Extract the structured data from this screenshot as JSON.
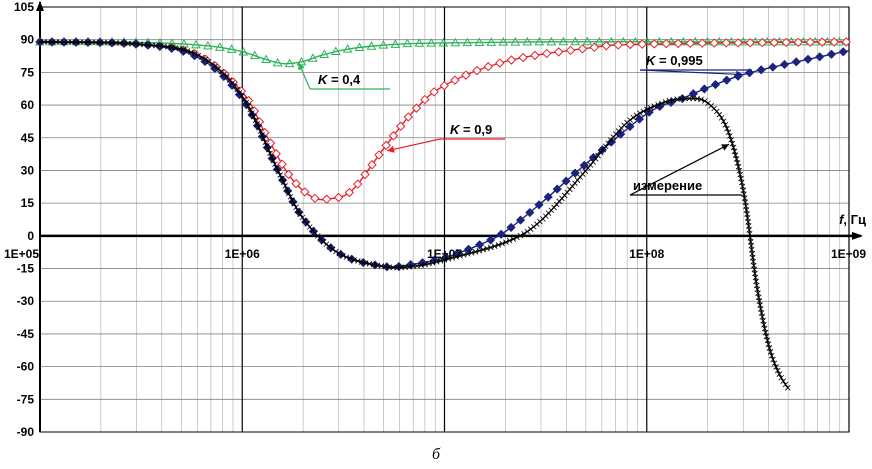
{
  "caption": "б",
  "chart_data": {
    "type": "line",
    "x_scale": "log",
    "xlim": [
      100000,
      1000000000
    ],
    "ylim": [
      -90,
      105
    ],
    "grid": true,
    "xlabel": "f, Гц",
    "x_ticks": [
      {
        "value": 100000,
        "label": "1E+05"
      },
      {
        "value": 1000000,
        "label": "1E+06"
      },
      {
        "value": 10000000,
        "label": "1E+07"
      },
      {
        "value": 100000000,
        "label": "1E+08"
      },
      {
        "value": 1000000000,
        "label": "1E+09"
      }
    ],
    "y_ticks": [
      {
        "value": 105,
        "label": "105"
      },
      {
        "value": 90,
        "label": "90"
      },
      {
        "value": 75,
        "label": "75"
      },
      {
        "value": 60,
        "label": "60"
      },
      {
        "value": 45,
        "label": "45"
      },
      {
        "value": 30,
        "label": "30"
      },
      {
        "value": 15,
        "label": "15"
      },
      {
        "value": 0,
        "label": "0"
      },
      {
        "value": -15,
        "label": "-15"
      },
      {
        "value": -30,
        "label": "-30"
      },
      {
        "value": -45,
        "label": "-45"
      },
      {
        "value": -60,
        "label": "-60"
      },
      {
        "value": -75,
        "label": "-75"
      },
      {
        "value": -90,
        "label": "-90"
      }
    ],
    "series": [
      {
        "name": "K = 0,4",
        "color": "#2db35a",
        "marker": "triangle",
        "x": [
          100000,
          200000,
          400000,
          700000,
          1000000,
          1300000,
          1600000,
          2000000,
          2500000,
          3500000,
          6000000,
          10000000,
          30000000,
          100000000,
          1000000000
        ],
        "y": [
          89,
          89,
          88.5,
          87,
          84.5,
          81,
          79,
          80,
          83,
          86,
          88,
          88.5,
          89,
          89,
          89
        ]
      },
      {
        "name": "K = 0,9",
        "color": "#e8202a",
        "marker": "diamond-open",
        "x": [
          100000,
          300000,
          600000,
          1000000,
          1300000,
          1700000,
          2200000,
          2700000,
          3500000,
          5000000,
          7000000,
          10000000,
          20000000,
          50000000,
          100000000,
          1000000000
        ],
        "y": [
          89,
          88,
          83,
          66,
          47,
          28,
          18,
          17,
          21,
          40,
          57,
          69,
          80,
          86,
          88,
          89
        ]
      },
      {
        "name": "K = 0,995",
        "color": "#1a237e",
        "marker": "diamond-filled",
        "x": [
          100000,
          300000,
          600000,
          1000000,
          1500000,
          2000000,
          3000000,
          5000000,
          7000000,
          10000000,
          15000000,
          20000000,
          30000000,
          50000000,
          100000000,
          150000000,
          200000000,
          300000000,
          500000000,
          1000000000
        ],
        "y": [
          89,
          88,
          82,
          63,
          30,
          8,
          -8,
          -14,
          -13,
          -10,
          -4,
          2,
          15,
          33,
          56,
          63,
          68,
          74,
          79,
          85
        ]
      },
      {
        "name": "измерение",
        "color": "#000000",
        "marker": "cross",
        "x": [
          100000,
          300000,
          600000,
          1000000,
          1500000,
          2000000,
          3000000,
          5000000,
          7000000,
          10000000,
          20000000,
          30000000,
          50000000,
          80000000,
          120000000,
          160000000,
          200000000,
          250000000,
          300000000,
          350000000,
          400000000,
          450000000,
          500000000
        ],
        "y": [
          89,
          88,
          83,
          64,
          30,
          8,
          -8,
          -14,
          -14,
          -11,
          -3,
          7,
          30,
          52,
          61,
          63,
          61,
          49,
          21,
          -23,
          -50,
          -63,
          -70
        ]
      }
    ],
    "annotations": [
      {
        "series_index": 0,
        "var": "K",
        "text": " = 0,4"
      },
      {
        "series_index": 1,
        "var": "K",
        "text": " = 0,9"
      },
      {
        "series_index": 2,
        "var": "K",
        "text": " = 0,995"
      },
      {
        "series_index": 3,
        "var": "",
        "text": "измерение"
      }
    ]
  }
}
